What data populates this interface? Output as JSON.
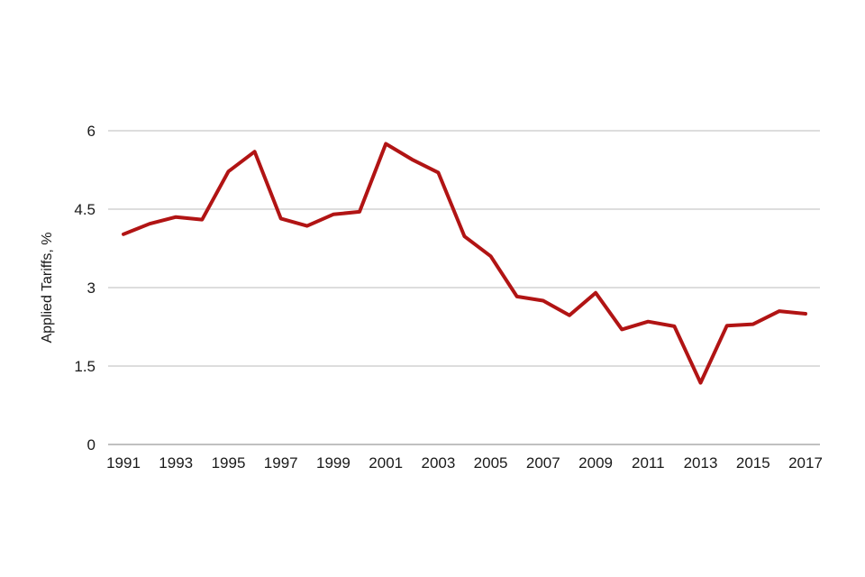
{
  "chart_data": {
    "type": "line",
    "title": "",
    "xlabel": "",
    "ylabel": "Applied Tariffs, %",
    "series_name": "Applied Tariffs, %",
    "x": [
      1991,
      1992,
      1993,
      1994,
      1995,
      1996,
      1997,
      1998,
      1999,
      2000,
      2001,
      2002,
      2003,
      2004,
      2005,
      2006,
      2007,
      2008,
      2009,
      2010,
      2011,
      2012,
      2013,
      2014,
      2015,
      2016,
      2017
    ],
    "values": [
      4.02,
      4.22,
      4.35,
      4.3,
      5.22,
      5.6,
      4.32,
      4.18,
      4.4,
      4.45,
      5.75,
      5.45,
      5.2,
      3.98,
      3.6,
      2.83,
      2.75,
      2.47,
      2.9,
      2.2,
      2.35,
      2.26,
      1.18,
      2.27,
      2.3,
      2.55,
      2.5
    ],
    "ylim": [
      0,
      6
    ],
    "yticks": [
      0,
      1.5,
      3,
      4.5,
      6
    ],
    "ytick_labels": [
      "0",
      "1.5",
      "3",
      "4.5",
      "6"
    ],
    "xticks": [
      1991,
      1993,
      1995,
      1997,
      1999,
      2001,
      2003,
      2005,
      2007,
      2009,
      2011,
      2013,
      2015,
      2017
    ],
    "grid": "horizontal",
    "legend": "none"
  },
  "colors": {
    "line": "#b11414",
    "grid_line": "#d2d2d2",
    "axis_line": "#ababab",
    "text": "#1a1a1a",
    "background": "#ffffff"
  }
}
